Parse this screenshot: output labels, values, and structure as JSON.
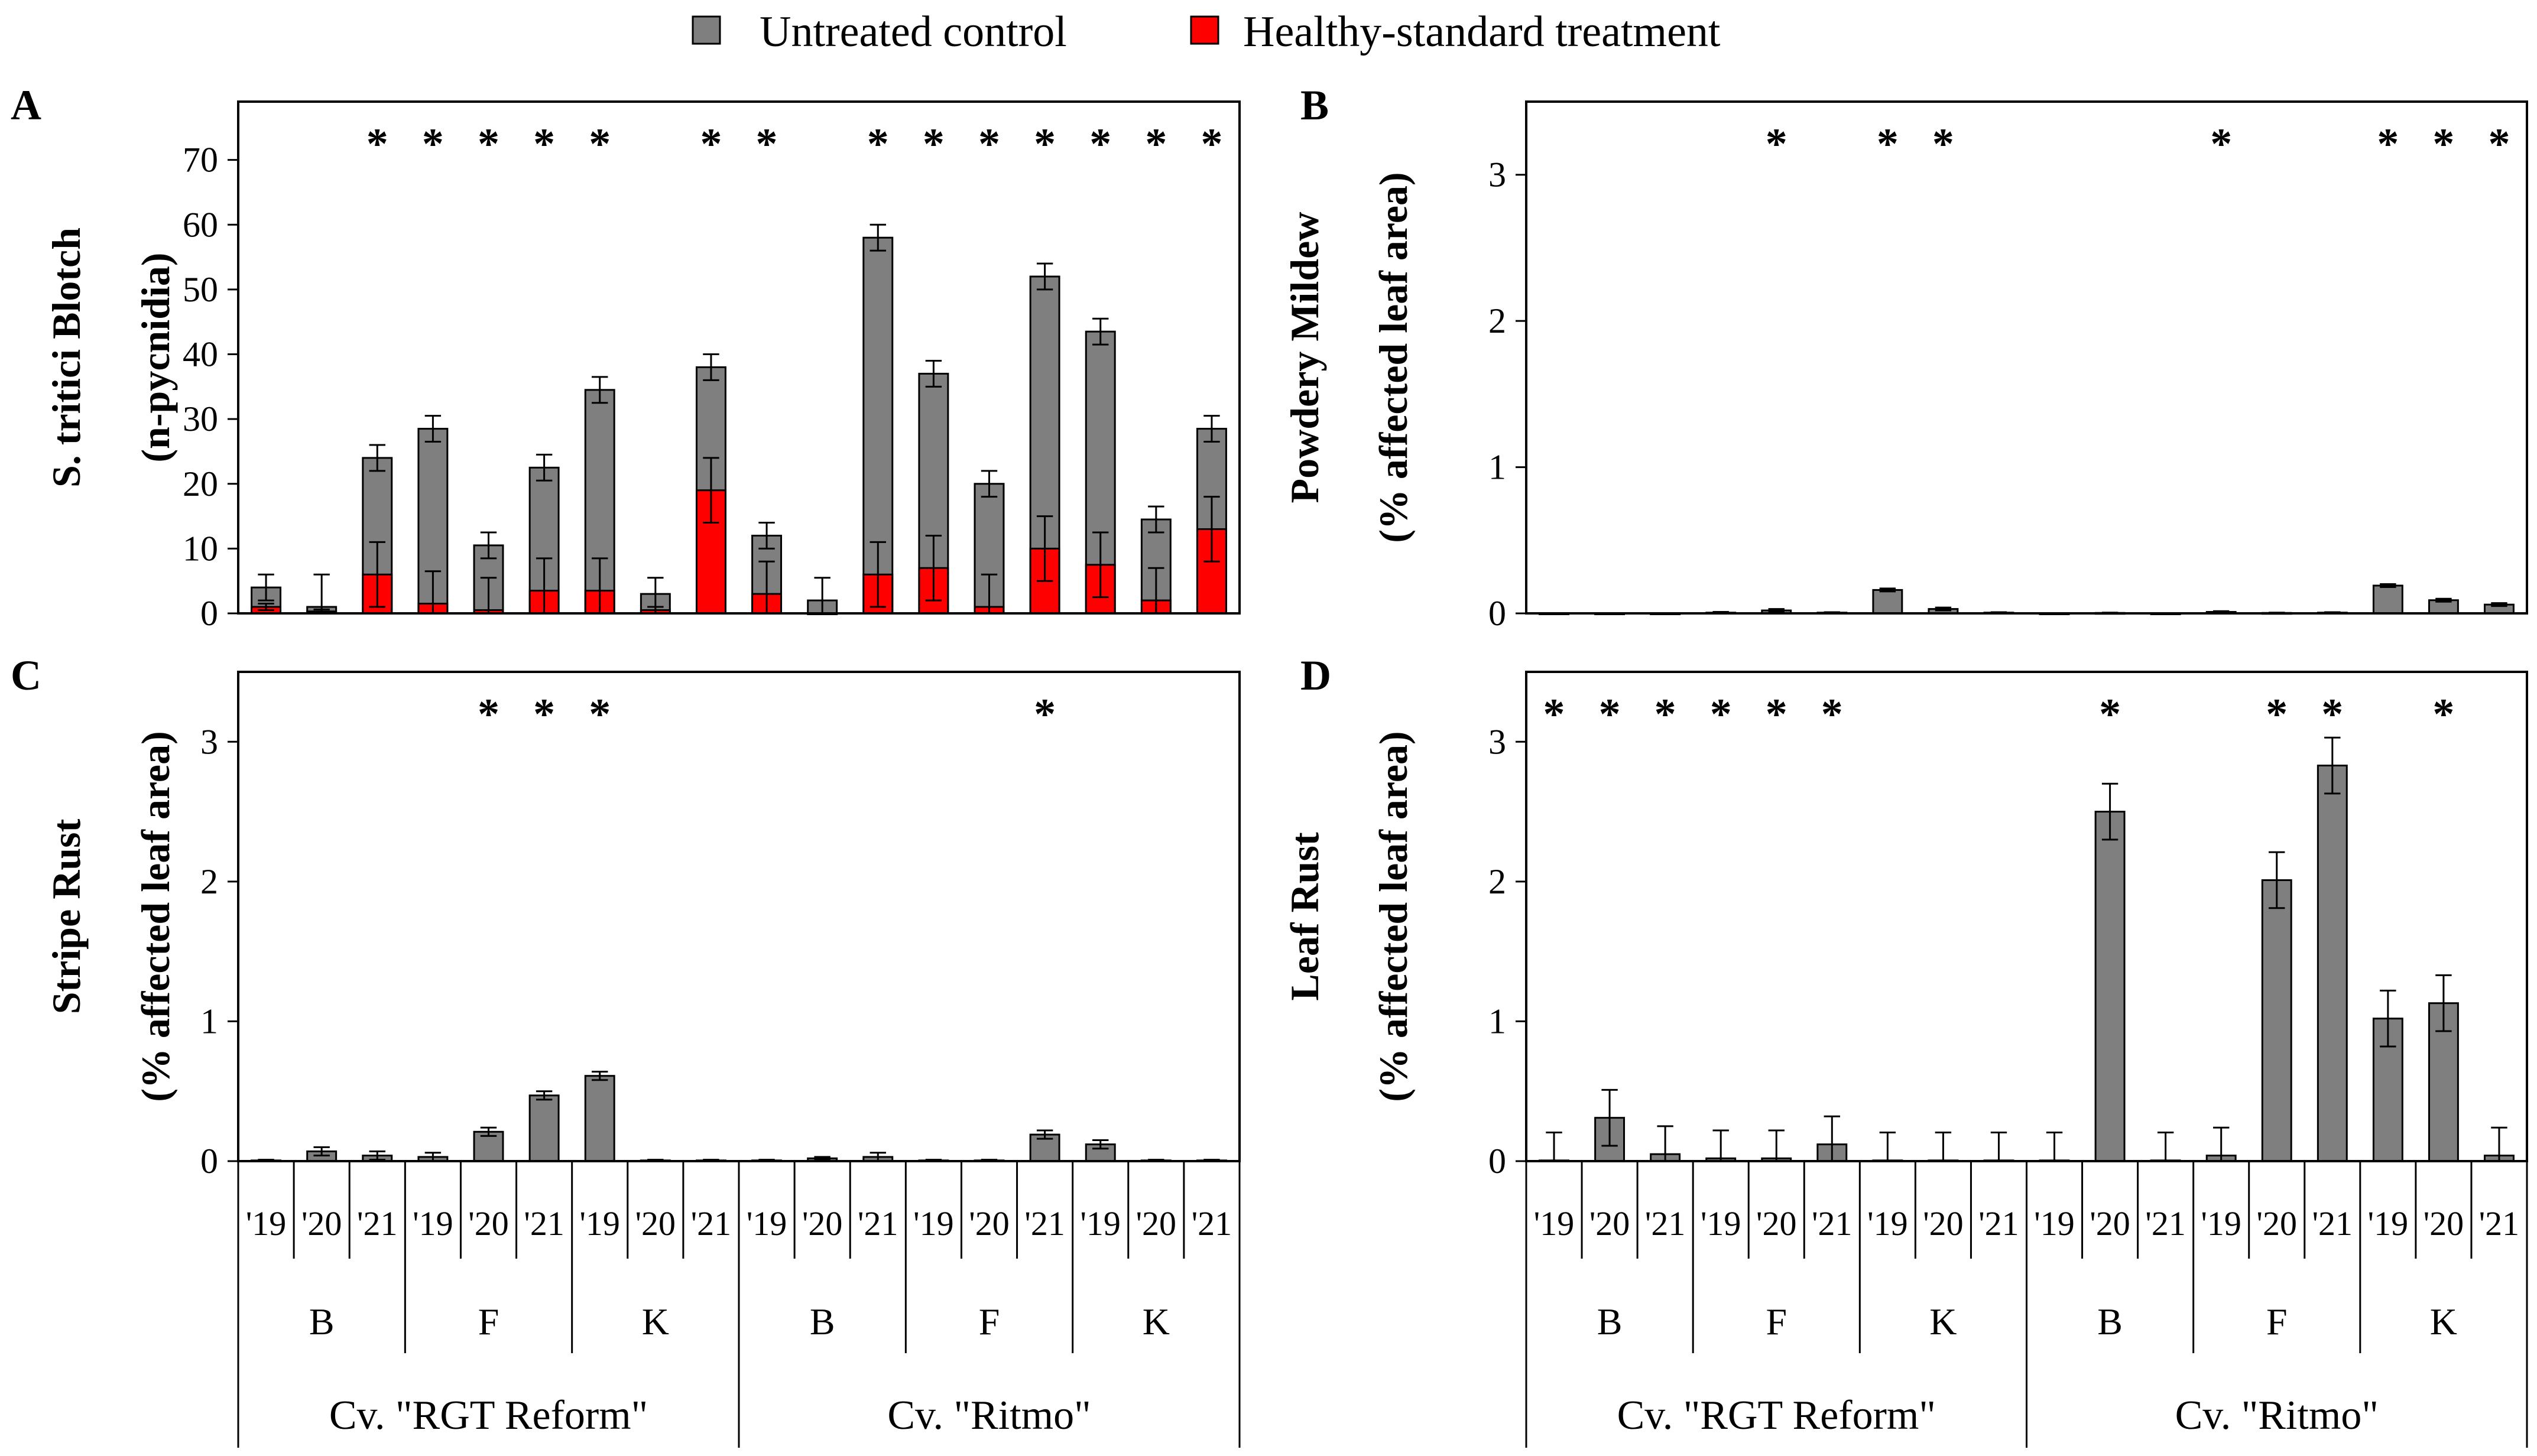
{
  "legend": [
    {
      "label": "Untreated control",
      "color": "#7f7f7f"
    },
    {
      "label": "Healthy-standard treatment",
      "color": "#ff0000"
    }
  ],
  "x_axis": {
    "years": [
      "'19",
      "'20",
      "'21"
    ],
    "sites": [
      "B",
      "F",
      "K"
    ],
    "cultivars": [
      "Cv. \"RGT Reform\"",
      "Cv. \"Ritmo\""
    ]
  },
  "chart_data": [
    {
      "panel": "A",
      "type": "bar",
      "stacked": true,
      "title": "",
      "ylabel": [
        "S. tritici Blotch",
        "(n-pycnidia)"
      ],
      "ylim": [
        0,
        79
      ],
      "yticks": [
        0,
        10,
        20,
        30,
        40,
        50,
        60,
        70
      ],
      "tick_labels": [
        "0",
        "10",
        "20",
        "30",
        "40",
        "50",
        "60",
        "70"
      ],
      "categories": [
        "B '19",
        "B '20",
        "B '21",
        "F '19",
        "F '20",
        "F '21",
        "K '19",
        "K '20",
        "K '21",
        "B '19",
        "B '20",
        "B '21",
        "F '19",
        "F '20",
        "F '21",
        "K '19",
        "K '20",
        "K '21"
      ],
      "series": [
        {
          "name": "Untreated control",
          "values": [
            4,
            1,
            24,
            28.5,
            10.5,
            22.5,
            34.5,
            3,
            38,
            12,
            2,
            58,
            37,
            20,
            52,
            43.5,
            14.5,
            28.5
          ],
          "errors": [
            2,
            5,
            2,
            2,
            2,
            2,
            2,
            2.5,
            2,
            2,
            3.5,
            2,
            2,
            2,
            2,
            2,
            2,
            2
          ]
        },
        {
          "name": "Healthy-standard treatment",
          "values": [
            1,
            0.3,
            6,
            1.5,
            0.5,
            3.5,
            3.5,
            0.5,
            19,
            3,
            0,
            6,
            7,
            1,
            10,
            7.5,
            2,
            13
          ],
          "errors": [
            0.5,
            0.3,
            5,
            5,
            5,
            5,
            5,
            0.5,
            5,
            5,
            0,
            5,
            5,
            5,
            5,
            5,
            5,
            5
          ]
        }
      ],
      "significance": [
        false,
        false,
        true,
        true,
        true,
        true,
        true,
        false,
        true,
        true,
        false,
        true,
        true,
        true,
        true,
        true,
        true,
        true
      ],
      "annotation": "*"
    },
    {
      "panel": "B",
      "type": "bar",
      "title": "",
      "ylabel": [
        "Powdery Mildew",
        "(% affected leaf area)"
      ],
      "ylim": [
        0,
        3.5
      ],
      "yticks": [
        0,
        1,
        2,
        3
      ],
      "tick_labels": [
        "0",
        "1",
        "2",
        "3"
      ],
      "categories": [
        "B '19",
        "B '20",
        "B '21",
        "F '19",
        "F '20",
        "F '21",
        "K '19",
        "K '20",
        "K '21",
        "B '19",
        "B '20",
        "B '21",
        "F '19",
        "F '20",
        "F '21",
        "K '19",
        "K '20",
        "K '21"
      ],
      "series": [
        {
          "name": "Untreated control",
          "values": [
            0,
            0,
            0,
            0.005,
            0.02,
            0.005,
            0.16,
            0.03,
            0.005,
            0,
            0.003,
            0,
            0.01,
            0.003,
            0.005,
            0.19,
            0.09,
            0.06
          ],
          "errors": [
            0,
            0,
            0,
            0.005,
            0.01,
            0.003,
            0.01,
            0.01,
            0.003,
            0,
            0.002,
            0,
            0.005,
            0.002,
            0.003,
            0.01,
            0.01,
            0.01
          ]
        }
      ],
      "significance": [
        false,
        false,
        false,
        false,
        true,
        false,
        true,
        true,
        false,
        false,
        false,
        false,
        true,
        false,
        false,
        true,
        true,
        true
      ],
      "annotation": "*"
    },
    {
      "panel": "C",
      "type": "bar",
      "title": "",
      "ylabel": [
        "Stripe Rust",
        "(% affected leaf area)"
      ],
      "ylim": [
        0,
        3.5
      ],
      "yticks": [
        0,
        1,
        2,
        3
      ],
      "tick_labels": [
        "0",
        "1",
        "2",
        "3"
      ],
      "categories": [
        "B '19",
        "B '20",
        "B '21",
        "F '19",
        "F '20",
        "F '21",
        "K '19",
        "K '20",
        "K '21",
        "B '19",
        "B '20",
        "B '21",
        "F '19",
        "F '20",
        "F '21",
        "K '19",
        "K '20",
        "K '21"
      ],
      "series": [
        {
          "name": "Untreated control",
          "values": [
            0.005,
            0.07,
            0.04,
            0.03,
            0.21,
            0.47,
            0.61,
            0.005,
            0.005,
            0.005,
            0.02,
            0.03,
            0.005,
            0.005,
            0.19,
            0.12,
            0.005,
            0.005
          ],
          "errors": [
            0.005,
            0.03,
            0.03,
            0.03,
            0.03,
            0.03,
            0.03,
            0.005,
            0.005,
            0.005,
            0.01,
            0.03,
            0.005,
            0.005,
            0.03,
            0.03,
            0.005,
            0.005
          ]
        }
      ],
      "significance": [
        false,
        false,
        false,
        false,
        true,
        true,
        true,
        false,
        false,
        false,
        false,
        false,
        false,
        false,
        true,
        false,
        false,
        false
      ],
      "annotation": "*"
    },
    {
      "panel": "D",
      "type": "bar",
      "title": "",
      "ylabel": [
        "Leaf Rust",
        "(% affected leaf area)"
      ],
      "ylim": [
        0,
        3.5
      ],
      "yticks": [
        0,
        1,
        2,
        3
      ],
      "tick_labels": [
        "0",
        "1",
        "2",
        "3"
      ],
      "categories": [
        "B '19",
        "B '20",
        "B '21",
        "F '19",
        "F '20",
        "F '21",
        "K '19",
        "K '20",
        "K '21",
        "B '19",
        "B '20",
        "B '21",
        "F '19",
        "F '20",
        "F '21",
        "K '19",
        "K '20",
        "K '21"
      ],
      "series": [
        {
          "name": "Untreated control",
          "values": [
            0.005,
            0.31,
            0.05,
            0.02,
            0.02,
            0.12,
            0.005,
            0.005,
            0.005,
            0.005,
            2.5,
            0.005,
            0.04,
            2.01,
            2.83,
            1.02,
            1.13,
            0.04
          ],
          "errors": [
            0.2,
            0.2,
            0.2,
            0.2,
            0.2,
            0.2,
            0.2,
            0.2,
            0.2,
            0.2,
            0.2,
            0.2,
            0.2,
            0.2,
            0.2,
            0.2,
            0.2,
            0.2
          ]
        }
      ],
      "significance": [
        true,
        true,
        true,
        true,
        true,
        true,
        false,
        false,
        false,
        false,
        true,
        false,
        false,
        true,
        true,
        false,
        true,
        false
      ],
      "annotation": "*"
    }
  ]
}
